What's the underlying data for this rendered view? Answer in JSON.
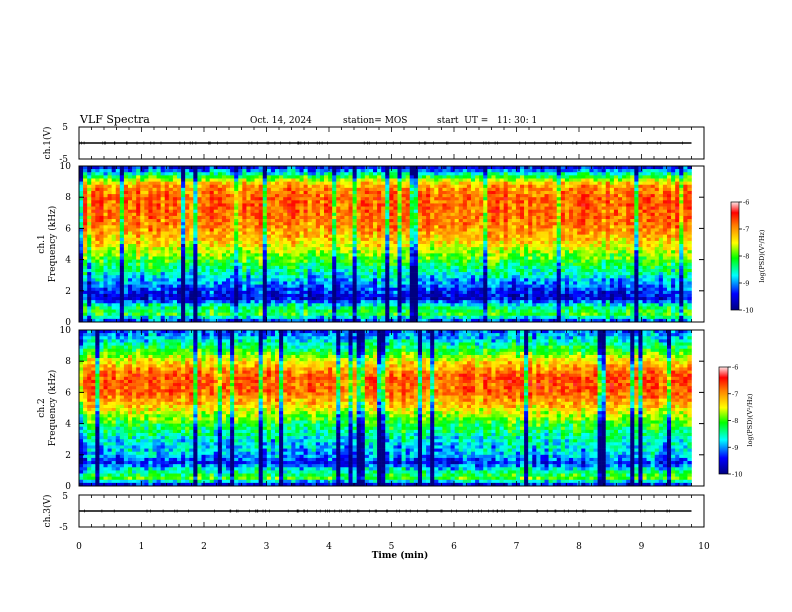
{
  "header": {
    "title": "VLF Spectra",
    "date": "Oct. 14, 2024",
    "station": "station= MOS",
    "start": "start  UT =   11: 30: 1"
  },
  "chart_data": [
    {
      "type": "line",
      "name": "ch1-waveform",
      "ylabel": "ch.1(V)",
      "ylim": [
        -5,
        5
      ],
      "yticks": [
        "5",
        "-5"
      ],
      "xlim": [
        0,
        10
      ],
      "x_end": 9.8,
      "level": 0.0
    },
    {
      "type": "heatmap",
      "name": "ch1-spectrogram",
      "channel_label": "ch.1",
      "ylabel": "Frequency (kHz)",
      "ylim": [
        0,
        10
      ],
      "yticks": [
        "0",
        "2",
        "4",
        "6",
        "8",
        "10"
      ],
      "xlim": [
        0,
        10
      ],
      "x_end": 9.8,
      "colorbar": {
        "label": "log(PSD)(V²/Hz)",
        "range": [
          -10,
          -6
        ],
        "ticks": [
          "-6",
          "-7",
          "-8",
          "-9",
          "-10"
        ]
      },
      "profile": {
        "freq_kHz": [
          0,
          0.5,
          1,
          1.5,
          2,
          3,
          4,
          5,
          6,
          7,
          8,
          8.8,
          9.3,
          10
        ],
        "log_psd": [
          -9.5,
          -8.3,
          -8.6,
          -9.6,
          -9.4,
          -8.8,
          -8.2,
          -7.6,
          -7.2,
          -7.0,
          -7.0,
          -7.3,
          -8.3,
          -9.7
        ]
      }
    },
    {
      "type": "heatmap",
      "name": "ch2-spectrogram",
      "channel_label": "ch.2",
      "ylabel": "Frequency (kHz)",
      "ylim": [
        0,
        10
      ],
      "yticks": [
        "0",
        "2",
        "4",
        "6",
        "8",
        "10"
      ],
      "xlim": [
        0,
        10
      ],
      "x_end": 9.8,
      "colorbar": {
        "label": "log(PSD)(V²/Hz)",
        "range": [
          -10,
          -6
        ],
        "ticks": [
          "-6",
          "-7",
          "-8",
          "-9",
          "-10"
        ]
      },
      "profile": {
        "freq_kHz": [
          0,
          0.5,
          1,
          1.5,
          2,
          3,
          4,
          5,
          6,
          7,
          8,
          8.8,
          9.3,
          10
        ],
        "log_psd": [
          -9.8,
          -8.2,
          -8.7,
          -9.4,
          -9.0,
          -8.8,
          -8.3,
          -7.6,
          -7.0,
          -6.9,
          -7.6,
          -8.4,
          -8.8,
          -9.3
        ]
      }
    },
    {
      "type": "line",
      "name": "ch3-waveform",
      "ylabel": "ch.3(V)",
      "ylim": [
        -5,
        5
      ],
      "yticks": [
        "5",
        "-5"
      ],
      "xlim": [
        0,
        10
      ],
      "x_end": 9.8,
      "level": 0.0,
      "xlabel": "Time (min)",
      "xticks": [
        "0",
        "1",
        "2",
        "3",
        "4",
        "5",
        "6",
        "7",
        "8",
        "9",
        "10"
      ]
    }
  ],
  "colors": {
    "map": [
      "#000080",
      "#0000ff",
      "#00ffff",
      "#00ff00",
      "#ffff00",
      "#ff7f00",
      "#ff0000",
      "#ffdddd"
    ]
  }
}
